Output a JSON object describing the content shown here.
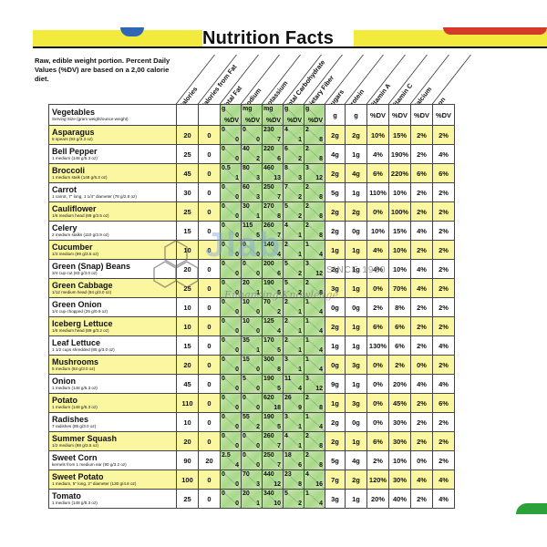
{
  "title": "Nutrition Facts",
  "intro": "Raw, edible weight portion. Percent Daily Values (%DV) are based on a 2,00 calorie diet.",
  "columns": [
    "Calories",
    "Calories from Fat",
    "Total Fat",
    "Sodium",
    "Potassium",
    "Total Carbohydrate",
    "Dietary Fiber",
    "Sugars",
    "Protein",
    "Vitamin A",
    "Vitamin C",
    "Calcium",
    "Iron"
  ],
  "header_row": {
    "label": "Vegetables",
    "sublabel": "Serving Size (gram weight/ounce weight)",
    "total_fat": [
      "g",
      "%DV"
    ],
    "sodium": [
      "mg",
      "%DV"
    ],
    "potassium": [
      "mg",
      "%DV"
    ],
    "carbohydrate": [
      "g",
      "%DV"
    ],
    "fiber": [
      "g",
      "%DV"
    ],
    "sugars": "g",
    "protein": "g",
    "vitamin_a": "%DV",
    "vitamin_c": "%DV",
    "calcium": "%DV",
    "iron": "%DV"
  },
  "rows": [
    {
      "name": "Asparagus",
      "serving": "5 spears (93 g/3.3 oz)",
      "cal": "20",
      "fatcal": "0",
      "fat": [
        "0",
        "0"
      ],
      "sod": [
        "0",
        "0"
      ],
      "pot": [
        "230",
        "7"
      ],
      "carb": [
        "4",
        "1"
      ],
      "fib": [
        "2",
        "8"
      ],
      "sug": "2g",
      "pro": "2g",
      "va": "10%",
      "vc": "15%",
      "ca": "2%",
      "fe": "2%"
    },
    {
      "name": "Bell Pepper",
      "serving": "1 medium (148 g/5.3 oz)",
      "cal": "25",
      "fatcal": "0",
      "fat": [
        "0",
        "0"
      ],
      "sod": [
        "40",
        "2"
      ],
      "pot": [
        "220",
        "6"
      ],
      "carb": [
        "6",
        "2"
      ],
      "fib": [
        "2",
        "8"
      ],
      "sug": "4g",
      "pro": "1g",
      "va": "4%",
      "vc": "190%",
      "ca": "2%",
      "fe": "4%"
    },
    {
      "name": "Broccoli",
      "serving": "1 medium stalk (148 g/5.3 oz)",
      "cal": "45",
      "fatcal": "0",
      "fat": [
        "0.5",
        "1"
      ],
      "sod": [
        "80",
        "3"
      ],
      "pot": [
        "460",
        "13"
      ],
      "carb": [
        "8",
        "3"
      ],
      "fib": [
        "3",
        "12"
      ],
      "sug": "2g",
      "pro": "4g",
      "va": "6%",
      "vc": "220%",
      "ca": "6%",
      "fe": "6%"
    },
    {
      "name": "Carrot",
      "serving": "1 carrot, 7\" long, 1 1/4\" diameter (78 g/2.8 oz)",
      "cal": "30",
      "fatcal": "0",
      "fat": [
        "0",
        "0"
      ],
      "sod": [
        "60",
        "3"
      ],
      "pot": [
        "250",
        "7"
      ],
      "carb": [
        "7",
        "2"
      ],
      "fib": [
        "2",
        "8"
      ],
      "sug": "5g",
      "pro": "1g",
      "va": "110%",
      "vc": "10%",
      "ca": "2%",
      "fe": "2%"
    },
    {
      "name": "Cauliflower",
      "serving": "1/6 medium head (99 g/3.5 oz)",
      "cal": "25",
      "fatcal": "0",
      "fat": [
        "0",
        "0"
      ],
      "sod": [
        "30",
        "1"
      ],
      "pot": [
        "270",
        "8"
      ],
      "carb": [
        "5",
        "2"
      ],
      "fib": [
        "2",
        "8"
      ],
      "sug": "2g",
      "pro": "2g",
      "va": "0%",
      "vc": "100%",
      "ca": "2%",
      "fe": "2%"
    },
    {
      "name": "Celery",
      "serving": "2 medium stalks (110 g/3.9 oz)",
      "cal": "15",
      "fatcal": "0",
      "fat": [
        "0",
        "0"
      ],
      "sod": [
        "115",
        "5"
      ],
      "pot": [
        "260",
        "7"
      ],
      "carb": [
        "4",
        "1"
      ],
      "fib": [
        "2",
        "8"
      ],
      "sug": "2g",
      "pro": "0g",
      "va": "10%",
      "vc": "15%",
      "ca": "4%",
      "fe": "2%"
    },
    {
      "name": "Cucumber",
      "serving": "1/3 medium (99 g/3.5 oz)",
      "cal": "10",
      "fatcal": "0",
      "fat": [
        "0",
        "0"
      ],
      "sod": [
        "0",
        "0"
      ],
      "pot": [
        "140",
        "4"
      ],
      "carb": [
        "2",
        "1"
      ],
      "fib": [
        "1",
        "4"
      ],
      "sug": "1g",
      "pro": "1g",
      "va": "4%",
      "vc": "10%",
      "ca": "2%",
      "fe": "2%"
    },
    {
      "name": "Green (Snap) Beans",
      "serving": "3/4 cup cut (83 g/3.0 oz)",
      "cal": "20",
      "fatcal": "0",
      "fat": [
        "0",
        "0"
      ],
      "sod": [
        "0",
        "0"
      ],
      "pot": [
        "200",
        "6"
      ],
      "carb": [
        "5",
        "2"
      ],
      "fib": [
        "3",
        "12"
      ],
      "sug": "2g",
      "pro": "1g",
      "va": "4%",
      "vc": "10%",
      "ca": "4%",
      "fe": "2%"
    },
    {
      "name": "Green Cabbage",
      "serving": "1/12 medium head (84 g/3.0 oz)",
      "cal": "25",
      "fatcal": "0",
      "fat": [
        "0",
        "0"
      ],
      "sod": [
        "20",
        "1"
      ],
      "pot": [
        "190",
        "5"
      ],
      "carb": [
        "5",
        "2"
      ],
      "fib": [
        "2",
        "8"
      ],
      "sug": "3g",
      "pro": "1g",
      "va": "0%",
      "vc": "70%",
      "ca": "4%",
      "fe": "2%"
    },
    {
      "name": "Green Onion",
      "serving": "1/4 cup chopped (25 g/0.9 oz)",
      "cal": "10",
      "fatcal": "0",
      "fat": [
        "0",
        "0"
      ],
      "sod": [
        "10",
        "0"
      ],
      "pot": [
        "70",
        "2"
      ],
      "carb": [
        "2",
        "1"
      ],
      "fib": [
        "1",
        "4"
      ],
      "sug": "0g",
      "pro": "0g",
      "va": "2%",
      "vc": "8%",
      "ca": "2%",
      "fe": "2%"
    },
    {
      "name": "Iceberg Lettuce",
      "serving": "1/6 medium head (89 g/3.2 oz)",
      "cal": "10",
      "fatcal": "0",
      "fat": [
        "0",
        "0"
      ],
      "sod": [
        "10",
        "0"
      ],
      "pot": [
        "125",
        "4"
      ],
      "carb": [
        "2",
        "1"
      ],
      "fib": [
        "1",
        "4"
      ],
      "sug": "2g",
      "pro": "1g",
      "va": "6%",
      "vc": "6%",
      "ca": "2%",
      "fe": "2%"
    },
    {
      "name": "Leaf Lettuce",
      "serving": "1 1/2 cups shredded (85 g/3.0 oz)",
      "cal": "15",
      "fatcal": "0",
      "fat": [
        "0",
        "0"
      ],
      "sod": [
        "35",
        "1"
      ],
      "pot": [
        "170",
        "5"
      ],
      "carb": [
        "2",
        "1"
      ],
      "fib": [
        "1",
        "4"
      ],
      "sug": "1g",
      "pro": "1g",
      "va": "130%",
      "vc": "6%",
      "ca": "2%",
      "fe": "4%"
    },
    {
      "name": "Mushrooms",
      "serving": "5 medium (84 g/3.0 oz)",
      "cal": "20",
      "fatcal": "0",
      "fat": [
        "0",
        "0"
      ],
      "sod": [
        "15",
        "0"
      ],
      "pot": [
        "300",
        "8"
      ],
      "carb": [
        "3",
        "1"
      ],
      "fib": [
        "1",
        "4"
      ],
      "sug": "0g",
      "pro": "3g",
      "va": "0%",
      "vc": "2%",
      "ca": "0%",
      "fe": "2%"
    },
    {
      "name": "Onion",
      "serving": "1 medium (148 g/5.3 oz)",
      "cal": "45",
      "fatcal": "0",
      "fat": [
        "0",
        "0"
      ],
      "sod": [
        "5",
        "0"
      ],
      "pot": [
        "190",
        "5"
      ],
      "carb": [
        "11",
        "4"
      ],
      "fib": [
        "3",
        "12"
      ],
      "sug": "9g",
      "pro": "1g",
      "va": "0%",
      "vc": "20%",
      "ca": "4%",
      "fe": "4%"
    },
    {
      "name": "Potato",
      "serving": "1 medium (148 g/5.3 oz)",
      "cal": "110",
      "fatcal": "0",
      "fat": [
        "0",
        "0"
      ],
      "sod": [
        "0",
        "0"
      ],
      "pot": [
        "620",
        "18"
      ],
      "carb": [
        "26",
        "9"
      ],
      "fib": [
        "2",
        "8"
      ],
      "sug": "1g",
      "pro": "3g",
      "va": "0%",
      "vc": "45%",
      "ca": "2%",
      "fe": "6%"
    },
    {
      "name": "Radishes",
      "serving": "7 radishes (85 g/3.0 oz)",
      "cal": "10",
      "fatcal": "0",
      "fat": [
        "0",
        "0"
      ],
      "sod": [
        "55",
        "2"
      ],
      "pot": [
        "190",
        "5"
      ],
      "carb": [
        "3",
        "1"
      ],
      "fib": [
        "1",
        "4"
      ],
      "sug": "2g",
      "pro": "0g",
      "va": "0%",
      "vc": "30%",
      "ca": "2%",
      "fe": "2%"
    },
    {
      "name": "Summer Squash",
      "serving": "1/2 medium (98 g/3.5 oz)",
      "cal": "20",
      "fatcal": "0",
      "fat": [
        "0",
        "0"
      ],
      "sod": [
        "0",
        "0"
      ],
      "pot": [
        "260",
        "7"
      ],
      "carb": [
        "4",
        "1"
      ],
      "fib": [
        "2",
        "8"
      ],
      "sug": "2g",
      "pro": "1g",
      "va": "6%",
      "vc": "30%",
      "ca": "2%",
      "fe": "2%"
    },
    {
      "name": "Sweet Corn",
      "serving": "kernels from 1 medium ear (90 g/3.2 oz)",
      "cal": "90",
      "fatcal": "20",
      "fat": [
        "2.5",
        "4"
      ],
      "sod": [
        "0",
        "0"
      ],
      "pot": [
        "250",
        "7"
      ],
      "carb": [
        "18",
        "6"
      ],
      "fib": [
        "2",
        "8"
      ],
      "sug": "5g",
      "pro": "4g",
      "va": "2%",
      "vc": "10%",
      "ca": "0%",
      "fe": "2%"
    },
    {
      "name": "Sweet Potato",
      "serving": "1 medium, 5\" long, 2\" diameter (130 g/4.6 oz)",
      "cal": "100",
      "fatcal": "0",
      "fat": [
        "0",
        "0"
      ],
      "sod": [
        "70",
        "3"
      ],
      "pot": [
        "440",
        "12"
      ],
      "carb": [
        "23",
        "8"
      ],
      "fib": [
        "4",
        "16"
      ],
      "sug": "7g",
      "pro": "2g",
      "va": "120%",
      "vc": "30%",
      "ca": "4%",
      "fe": "4%"
    },
    {
      "name": "Tomato",
      "serving": "1 medium (148 g/5.3 oz)",
      "cal": "25",
      "fatcal": "0",
      "fat": [
        "0",
        "0"
      ],
      "sod": [
        "20",
        "1"
      ],
      "pot": [
        "340",
        "10"
      ],
      "carb": [
        "5",
        "2"
      ],
      "fib": [
        "1",
        "4"
      ],
      "sug": "3g",
      "pro": "1g",
      "va": "20%",
      "vc": "40%",
      "ca": "2%",
      "fe": "4%"
    }
  ],
  "watermark": {
    "brand": "Jlab",
    "since": "SINCE 1980",
    "tagline": "Enhancing Knowledge..."
  }
}
